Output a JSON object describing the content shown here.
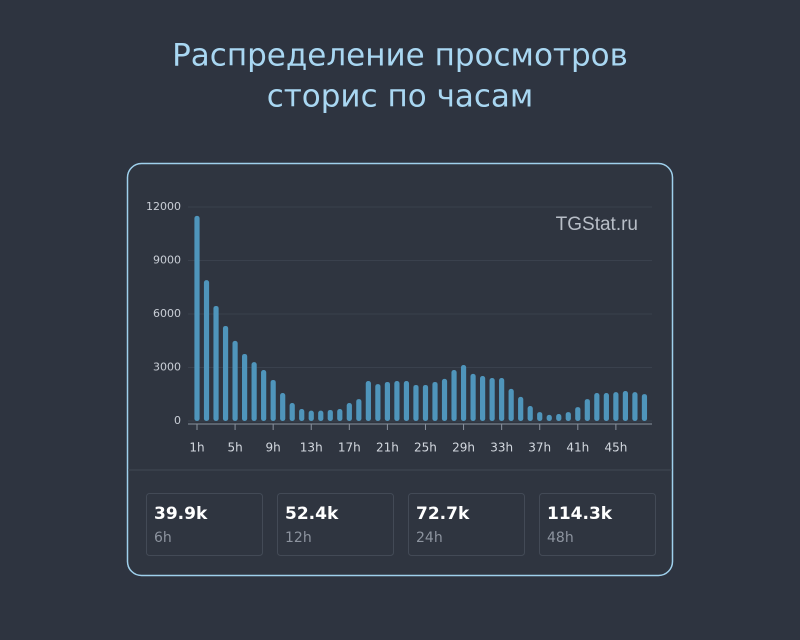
{
  "chart_data": {
    "type": "bar",
    "title": [
      "Распределение просмотров",
      "сторис по часам"
    ],
    "watermark": "TGStat.ru",
    "categories": [
      "1h",
      null,
      null,
      null,
      "5h",
      null,
      null,
      null,
      "9h",
      null,
      null,
      null,
      "13h",
      null,
      null,
      null,
      "17h",
      null,
      null,
      null,
      "21h",
      null,
      null,
      null,
      "25h",
      null,
      null,
      null,
      "29h",
      null,
      null,
      null,
      "33h",
      null,
      null,
      null,
      "37h",
      null,
      null,
      null,
      "41h",
      null,
      null,
      null,
      "45h",
      null,
      null,
      null
    ],
    "values": [
      11500,
      7900,
      6450,
      5330,
      4490,
      3760,
      3300,
      2860,
      2300,
      1570,
      1010,
      670,
      580,
      580,
      620,
      670,
      1010,
      1230,
      2240,
      2070,
      2190,
      2240,
      2240,
      2020,
      2020,
      2190,
      2360,
      2860,
      3140,
      2640,
      2520,
      2410,
      2410,
      1800,
      1350,
      840,
      500,
      340,
      390,
      500,
      780,
      1230,
      1570,
      1570,
      1620,
      1680,
      1620,
      1510
    ],
    "color": "#4f95bb",
    "ylim": [
      0,
      12000
    ],
    "yticks": [
      0,
      3000,
      6000,
      9000,
      12000
    ],
    "grid": true,
    "stats": [
      {
        "value": "39.9k",
        "label": "6h"
      },
      {
        "value": "52.4k",
        "label": "12h"
      },
      {
        "value": "72.7k",
        "label": "24h"
      },
      {
        "value": "114.3k",
        "label": "48h"
      }
    ]
  }
}
